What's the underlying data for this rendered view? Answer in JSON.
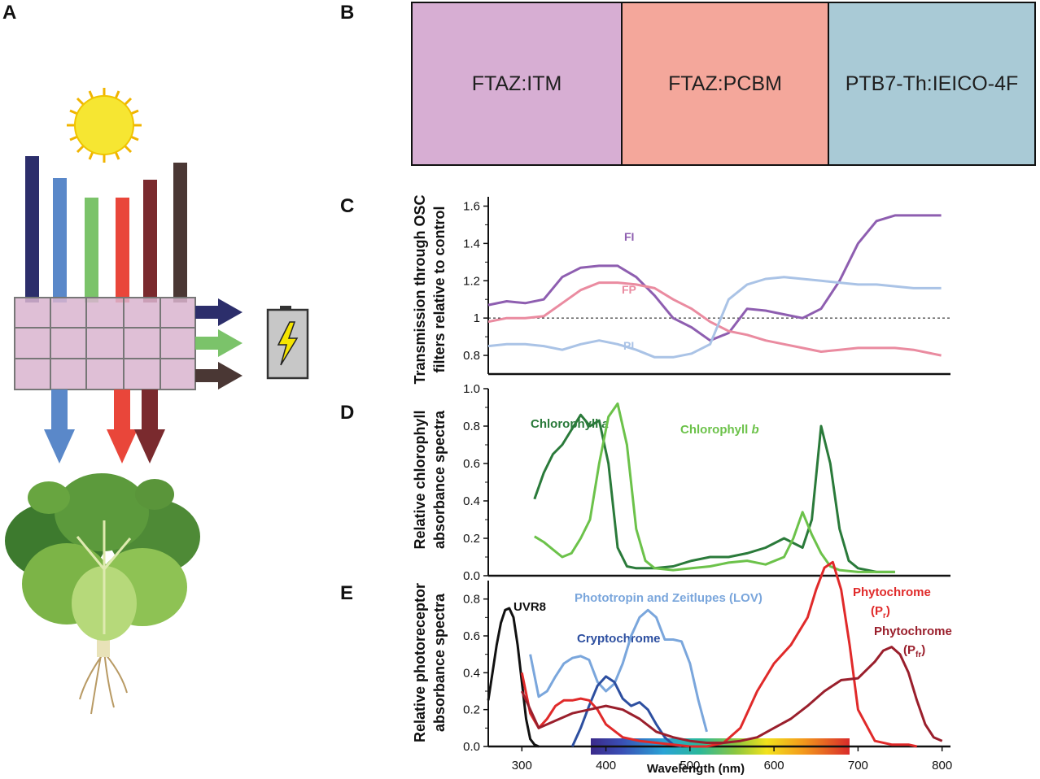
{
  "panel_labels": {
    "a": "A",
    "b": "B",
    "c": "C",
    "d": "D",
    "e": "E"
  },
  "panel_b": {
    "filters": [
      {
        "label": "FTAZ:ITM",
        "color": "#d7aed3"
      },
      {
        "label": "FTAZ:PCBM",
        "color": "#f4a79b"
      },
      {
        "label": "PTB7-Th:IEICO-4F",
        "color": "#a9cad6"
      }
    ]
  },
  "panel_a": {
    "beams_in": [
      "#2c2e6b",
      "#5a88c9",
      "#7bc36a",
      "#e9463a",
      "#7a2a2e",
      "#4a3734"
    ],
    "beams_transmitted": [
      "#5a88c9",
      "#e9463a",
      "#7a2a2e"
    ],
    "beams_absorbed": [
      "#2c2e6b",
      "#7bc36a",
      "#4a3734"
    ]
  },
  "chart_data": [
    {
      "panel": "C",
      "type": "line",
      "ylabel": "Transmission through OSC filters relative to control",
      "ylim": [
        0.7,
        1.65
      ],
      "xlim": [
        300,
        800
      ],
      "yticks": [
        "0.8",
        "1",
        "1.2",
        "1.4",
        "1.6"
      ],
      "reference_line": 1,
      "series": [
        {
          "name": "FI",
          "color": "#8e5eb0",
          "x": [
            300,
            320,
            340,
            360,
            380,
            400,
            420,
            440,
            460,
            480,
            500,
            520,
            540,
            560,
            580,
            600,
            620,
            640,
            660,
            680,
            700,
            720,
            740,
            760,
            780,
            790
          ],
          "y": [
            1.07,
            1.09,
            1.08,
            1.1,
            1.22,
            1.27,
            1.28,
            1.28,
            1.22,
            1.12,
            1.0,
            0.95,
            0.88,
            0.92,
            1.05,
            1.04,
            1.02,
            1.0,
            1.05,
            1.2,
            1.4,
            1.52,
            1.55,
            1.55,
            1.55,
            1.55
          ]
        },
        {
          "name": "FP",
          "color": "#ea8ba0",
          "x": [
            300,
            320,
            340,
            360,
            380,
            400,
            420,
            440,
            460,
            480,
            500,
            520,
            540,
            560,
            580,
            600,
            620,
            640,
            660,
            680,
            700,
            720,
            740,
            760,
            780,
            790
          ],
          "y": [
            0.98,
            1.0,
            1.0,
            1.01,
            1.08,
            1.15,
            1.19,
            1.19,
            1.18,
            1.16,
            1.1,
            1.05,
            0.98,
            0.93,
            0.91,
            0.88,
            0.86,
            0.84,
            0.82,
            0.83,
            0.84,
            0.84,
            0.84,
            0.83,
            0.81,
            0.8
          ]
        },
        {
          "name": "PI",
          "color": "#aac3e6",
          "x": [
            300,
            320,
            340,
            360,
            380,
            400,
            420,
            440,
            460,
            480,
            500,
            520,
            540,
            560,
            580,
            600,
            620,
            640,
            660,
            680,
            700,
            720,
            740,
            760,
            780,
            790
          ],
          "y": [
            0.85,
            0.86,
            0.86,
            0.85,
            0.83,
            0.86,
            0.88,
            0.86,
            0.83,
            0.79,
            0.79,
            0.81,
            0.86,
            1.1,
            1.18,
            1.21,
            1.22,
            1.21,
            1.2,
            1.19,
            1.18,
            1.18,
            1.17,
            1.16,
            1.16,
            1.16
          ]
        }
      ]
    },
    {
      "panel": "D",
      "type": "line",
      "ylabel": "Relative chlorophyll absorbance spectra",
      "ylim": [
        0,
        1.0
      ],
      "xlim": [
        300,
        800
      ],
      "yticks": [
        "0.0",
        "0.2",
        "0.4",
        "0.6",
        "0.8",
        "1.0"
      ],
      "series": [
        {
          "name": "Chlorophyll a",
          "color": "#2a7a3a",
          "x": [
            350,
            360,
            370,
            380,
            390,
            400,
            410,
            420,
            430,
            440,
            450,
            460,
            480,
            500,
            520,
            540,
            560,
            580,
            600,
            620,
            640,
            650,
            660,
            670,
            680,
            690,
            700,
            720,
            740
          ],
          "y": [
            0.41,
            0.55,
            0.65,
            0.7,
            0.78,
            0.86,
            0.8,
            0.83,
            0.6,
            0.15,
            0.05,
            0.04,
            0.04,
            0.05,
            0.08,
            0.1,
            0.1,
            0.12,
            0.15,
            0.2,
            0.15,
            0.3,
            0.8,
            0.6,
            0.25,
            0.08,
            0.04,
            0.02,
            0.02
          ]
        },
        {
          "name": "Chlorophyll b",
          "color": "#6cc24a",
          "x": [
            350,
            360,
            370,
            380,
            390,
            400,
            410,
            420,
            430,
            440,
            450,
            460,
            470,
            480,
            500,
            520,
            540,
            560,
            580,
            600,
            620,
            630,
            640,
            650,
            660,
            670,
            680,
            700,
            720,
            740
          ],
          "y": [
            0.21,
            0.18,
            0.14,
            0.1,
            0.12,
            0.2,
            0.3,
            0.6,
            0.85,
            0.92,
            0.7,
            0.25,
            0.08,
            0.04,
            0.03,
            0.04,
            0.05,
            0.07,
            0.08,
            0.06,
            0.1,
            0.2,
            0.34,
            0.22,
            0.12,
            0.05,
            0.03,
            0.02,
            0.02,
            0.02
          ]
        }
      ]
    },
    {
      "panel": "E",
      "type": "line",
      "ylabel": "Relative photoreceptor absorbance spectra",
      "xlabel": "Wavelength (nm)",
      "ylim": [
        0,
        0.9
      ],
      "xlim": [
        260,
        810
      ],
      "xticks": [
        "300",
        "400",
        "500",
        "600",
        "700",
        "800"
      ],
      "yticks": [
        "0.0",
        "0.2",
        "0.4",
        "0.6",
        "0.8"
      ],
      "series": [
        {
          "name": "UVR8",
          "color": "#111111",
          "x": [
            260,
            265,
            270,
            275,
            280,
            285,
            290,
            295,
            300,
            305,
            310,
            315,
            320
          ],
          "y": [
            0.25,
            0.4,
            0.55,
            0.67,
            0.74,
            0.75,
            0.7,
            0.55,
            0.35,
            0.15,
            0.04,
            0.01,
            0.0
          ]
        },
        {
          "name": "Phototropin and Zeitlupes (LOV)",
          "color": "#7aa6dc",
          "x": [
            310,
            320,
            330,
            340,
            350,
            360,
            370,
            380,
            390,
            400,
            410,
            420,
            430,
            440,
            450,
            460,
            470,
            480,
            490,
            500,
            510,
            520
          ],
          "y": [
            0.5,
            0.27,
            0.3,
            0.38,
            0.45,
            0.48,
            0.49,
            0.47,
            0.35,
            0.3,
            0.34,
            0.45,
            0.6,
            0.7,
            0.74,
            0.7,
            0.58,
            0.58,
            0.57,
            0.45,
            0.25,
            0.08
          ]
        },
        {
          "name": "Cryptochrome",
          "color": "#2d4fa0",
          "x": [
            360,
            370,
            380,
            390,
            400,
            410,
            420,
            430,
            440,
            450,
            460,
            470,
            480,
            490
          ],
          "y": [
            0.0,
            0.1,
            0.22,
            0.33,
            0.38,
            0.35,
            0.26,
            0.22,
            0.24,
            0.2,
            0.12,
            0.05,
            0.01,
            0.0
          ]
        },
        {
          "name": "Phytochrome (Pr)",
          "color": "#e02a2a",
          "x": [
            300,
            310,
            320,
            330,
            340,
            350,
            360,
            370,
            380,
            390,
            400,
            420,
            440,
            460,
            480,
            500,
            520,
            540,
            560,
            580,
            600,
            620,
            640,
            650,
            660,
            670,
            680,
            690,
            700,
            720,
            740,
            760,
            770
          ],
          "y": [
            0.4,
            0.18,
            0.1,
            0.15,
            0.22,
            0.25,
            0.25,
            0.26,
            0.25,
            0.2,
            0.12,
            0.05,
            0.03,
            0.02,
            0.01,
            0.0,
            0.0,
            0.02,
            0.1,
            0.3,
            0.45,
            0.55,
            0.7,
            0.85,
            0.97,
            1.0,
            0.85,
            0.55,
            0.2,
            0.03,
            0.01,
            0.01,
            0.0
          ]
        },
        {
          "name": "Phytochrome (Pfr)",
          "color": "#9a1f2c",
          "x": [
            300,
            320,
            340,
            360,
            380,
            400,
            420,
            440,
            460,
            480,
            500,
            520,
            540,
            560,
            580,
            600,
            620,
            640,
            660,
            680,
            700,
            720,
            730,
            740,
            750,
            760,
            770,
            780,
            790,
            800
          ],
          "y": [
            0.3,
            0.1,
            0.14,
            0.18,
            0.2,
            0.22,
            0.2,
            0.15,
            0.08,
            0.05,
            0.03,
            0.02,
            0.02,
            0.03,
            0.05,
            0.1,
            0.15,
            0.22,
            0.3,
            0.36,
            0.37,
            0.46,
            0.52,
            0.54,
            0.5,
            0.4,
            0.25,
            0.12,
            0.05,
            0.03
          ]
        }
      ]
    }
  ],
  "series_labels": {
    "fi": "FI",
    "fp": "FP",
    "pi": "PI",
    "chl_a_text": "Chlorophyll ",
    "chl_a_italic": "a",
    "chl_b_text": "Chlorophyll ",
    "chl_b_italic": "b",
    "uvr8": "UVR8",
    "lov": "Phototropin and Zeitlupes (LOV)",
    "crypto": "Cryptochrome",
    "phy_r_line1": "Phytochrome",
    "phy_r_line2_open": "(P",
    "phy_r_sub": "r",
    "phy_r_close": ")",
    "phy_fr_line1": "Phytochrome",
    "phy_fr_line2_open": "(P",
    "phy_fr_sub": "fr",
    "phy_fr_close": ")"
  },
  "axis_labels": {
    "c_line1": "Transmission through OSC",
    "c_line2": "filters relative to control",
    "d_line1": "Relative chlorophyll",
    "d_line2": "absorbance spectra",
    "e_line1": "Relative photoreceptor",
    "e_line2": "absorbance spectra",
    "e_x": "Wavelength (nm)"
  }
}
